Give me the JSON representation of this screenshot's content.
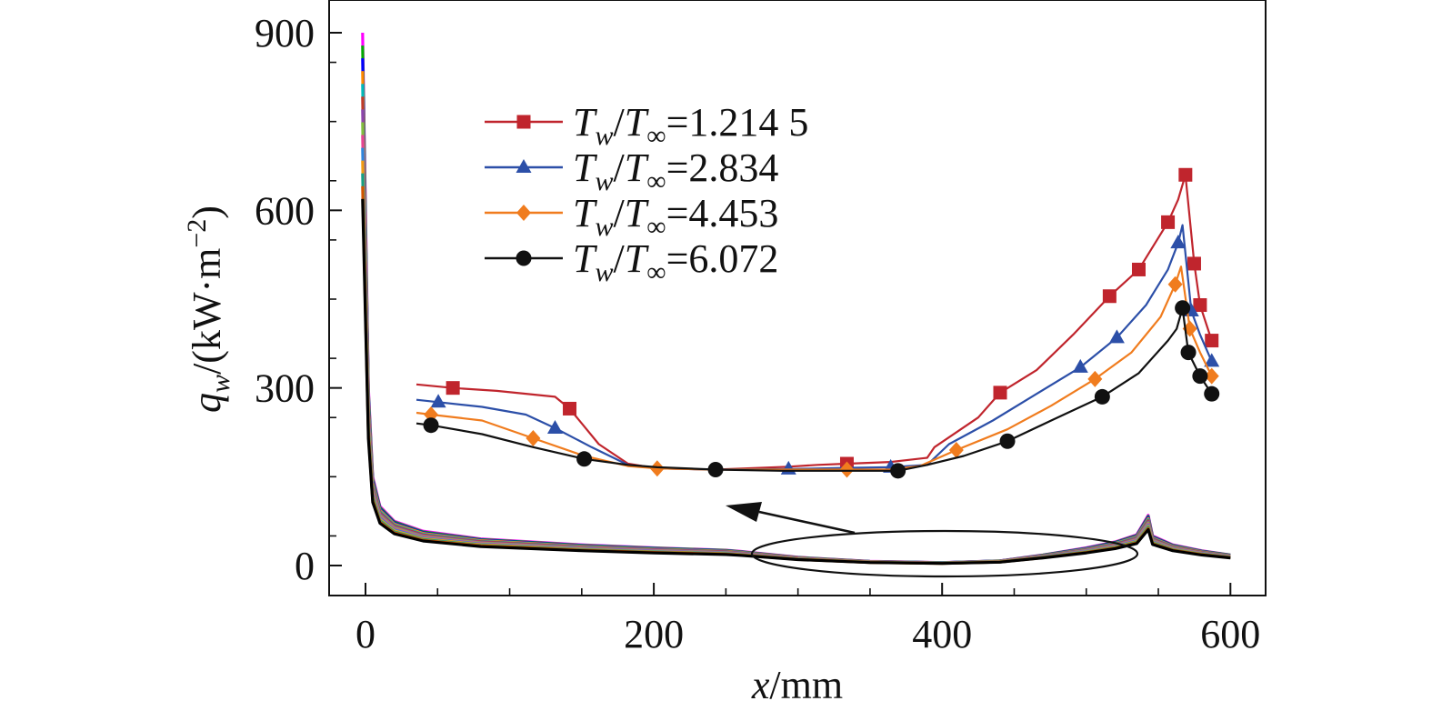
{
  "chart_data": {
    "type": "line",
    "xlabel": {
      "var": "x",
      "unit": "/mm"
    },
    "ylabel": {
      "var": "q",
      "sub": "w",
      "unit": "/(kW·m",
      "sup": "−2",
      "close": ")"
    },
    "xlim": [
      -25,
      625
    ],
    "ylim": [
      -50,
      940
    ],
    "xticks": [
      0,
      200,
      400,
      600
    ],
    "yticks": [
      0,
      300,
      600,
      900
    ],
    "main_series": {
      "count": 14,
      "colors": [
        "#ff00ff",
        "#00aa00",
        "#0000ff",
        "#ff8800",
        "#00bbbb",
        "#c0392b",
        "#8e44ad",
        "#7fbf3f",
        "#e84393",
        "#2e86de",
        "#f39c12",
        "#16a085",
        "#d35400",
        "#000000"
      ],
      "base_curve": [
        [
          -2,
          900
        ],
        [
          0,
          600
        ],
        [
          2,
          300
        ],
        [
          5,
          150
        ],
        [
          10,
          100
        ],
        [
          20,
          75
        ],
        [
          40,
          58
        ],
        [
          80,
          45
        ],
        [
          150,
          35
        ],
        [
          200,
          30
        ],
        [
          250,
          26
        ],
        [
          260,
          24
        ],
        [
          300,
          14
        ],
        [
          350,
          7
        ],
        [
          400,
          5
        ],
        [
          440,
          8
        ],
        [
          470,
          18
        ],
        [
          500,
          30
        ],
        [
          520,
          40
        ],
        [
          535,
          52
        ],
        [
          543,
          85
        ],
        [
          546,
          50
        ],
        [
          560,
          35
        ],
        [
          580,
          25
        ],
        [
          600,
          18
        ]
      ]
    },
    "inset": {
      "x_from": 265,
      "x_to": 485,
      "series": [
        {
          "name": "T_w/T_∞=1.214 5",
          "legend": {
            "a": "T",
            "a_sub": "w",
            "b": "T",
            "b_sub": "∞",
            "value": "=1.214 5"
          },
          "color": "#c0252d",
          "marker": "square",
          "values": [
            [
              45,
              306
            ],
            [
              70,
              300
            ],
            [
              100,
              295
            ],
            [
              140,
              285
            ],
            [
              150,
              265
            ],
            [
              170,
              205
            ],
            [
              190,
              172
            ],
            [
              210,
              164
            ],
            [
              250,
              162
            ],
            [
              300,
              167
            ],
            [
              320,
              170
            ],
            [
              340,
              172
            ],
            [
              370,
              175
            ],
            [
              395,
              182
            ],
            [
              400,
              200
            ],
            [
              430,
              250
            ],
            [
              445,
              292
            ],
            [
              470,
              330
            ],
            [
              495,
              390
            ],
            [
              520,
              455
            ],
            [
              540,
              500
            ],
            [
              560,
              580
            ],
            [
              567,
              618
            ],
            [
              572,
              660
            ],
            [
              578,
              510
            ],
            [
              582,
              440
            ],
            [
              590,
              380
            ]
          ]
        },
        {
          "name": "T_w/T_∞=2.834",
          "legend": {
            "a": "T",
            "a_sub": "w",
            "b": "T",
            "b_sub": "∞",
            "value": "=2.834"
          },
          "color": "#2c4fa8",
          "marker": "triangle",
          "values": [
            [
              45,
              280
            ],
            [
              60,
              276
            ],
            [
              90,
              268
            ],
            [
              120,
              255
            ],
            [
              140,
              232
            ],
            [
              165,
              200
            ],
            [
              190,
              170
            ],
            [
              210,
              164
            ],
            [
              250,
              162
            ],
            [
              300,
              163
            ],
            [
              340,
              165
            ],
            [
              370,
              166
            ],
            [
              395,
              170
            ],
            [
              410,
              205
            ],
            [
              440,
              245
            ],
            [
              470,
              290
            ],
            [
              500,
              335
            ],
            [
              525,
              385
            ],
            [
              545,
              440
            ],
            [
              560,
              500
            ],
            [
              567,
              545
            ],
            [
              570,
              575
            ],
            [
              576,
              430
            ],
            [
              582,
              390
            ],
            [
              590,
              345
            ]
          ]
        },
        {
          "name": "T_w/T_∞=4.453",
          "legend": {
            "a": "T",
            "a_sub": "w",
            "b": "T",
            "b_sub": "∞",
            "value": "=4.453"
          },
          "color": "#f07c1e",
          "marker": "diamond",
          "values": [
            [
              45,
              258
            ],
            [
              55,
              255
            ],
            [
              90,
              245
            ],
            [
              125,
              215
            ],
            [
              160,
              185
            ],
            [
              190,
              168
            ],
            [
              210,
              164
            ],
            [
              250,
              162
            ],
            [
              300,
              162
            ],
            [
              340,
              162
            ],
            [
              370,
              162
            ],
            [
              390,
              168
            ],
            [
              415,
              195
            ],
            [
              450,
              230
            ],
            [
              480,
              270
            ],
            [
              510,
              315
            ],
            [
              535,
              360
            ],
            [
              555,
              420
            ],
            [
              565,
              475
            ],
            [
              569,
              505
            ],
            [
              575,
              400
            ],
            [
              582,
              360
            ],
            [
              590,
              320
            ]
          ]
        },
        {
          "name": "T_w/T_∞=6.072",
          "legend": {
            "a": "T",
            "a_sub": "w",
            "b": "T",
            "b_sub": "∞",
            "value": "=6.072"
          },
          "color": "#111111",
          "marker": "circle",
          "values": [
            [
              45,
              240
            ],
            [
              55,
              237
            ],
            [
              90,
              222
            ],
            [
              125,
              200
            ],
            [
              160,
              180
            ],
            [
              190,
              170
            ],
            [
              210,
              166
            ],
            [
              250,
              162
            ],
            [
              295,
              160
            ],
            [
              340,
              160
            ],
            [
              375,
              160
            ],
            [
              395,
              170
            ],
            [
              420,
              185
            ],
            [
              450,
              210
            ],
            [
              480,
              245
            ],
            [
              515,
              285
            ],
            [
              540,
              325
            ],
            [
              560,
              380
            ],
            [
              566,
              400
            ],
            [
              570,
              435
            ],
            [
              574,
              360
            ],
            [
              582,
              320
            ],
            [
              590,
              290
            ]
          ]
        }
      ]
    }
  }
}
